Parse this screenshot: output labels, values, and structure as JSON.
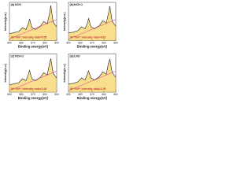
{
  "chart_data": [
    {
      "type": "line",
      "panel": "(a)",
      "title": "NCH",
      "x_label": "Binding energy(eV)",
      "y_label": "Intensity(a.u.)",
      "note": "Ni³⁺/Ni²⁺ intensity ratio=0.55",
      "color": "#222222",
      "fill": "#f2c230",
      "x": [
        890,
        886,
        882,
        879,
        876,
        874,
        873,
        871,
        868,
        864,
        861,
        858,
        856,
        855,
        853,
        850
      ],
      "values": [
        18,
        21,
        24,
        34,
        29,
        44,
        56,
        34,
        29,
        37,
        50,
        44,
        72,
        92,
        48,
        36
      ],
      "xlim": [
        890,
        850
      ],
      "xticks": [
        890,
        880,
        870,
        860,
        850
      ],
      "ylim": [
        0,
        100
      ]
    },
    {
      "type": "line",
      "panel": "(b)",
      "title": "NCH-1",
      "x_label": "Binding energy(eV)",
      "y_label": "Intensity(a.u.)",
      "note": "Ni³⁺/Ni²⁺ intensity ratio=0.82",
      "color": "#222222",
      "fill": "#f2c230",
      "x": [
        890,
        886,
        882,
        879,
        876,
        874,
        873,
        871,
        868,
        864,
        861,
        858,
        856,
        855,
        853,
        850
      ],
      "values": [
        20,
        22,
        26,
        36,
        31,
        46,
        58,
        36,
        31,
        39,
        52,
        46,
        74,
        90,
        50,
        38
      ],
      "xlim": [
        890,
        850
      ],
      "xticks": [
        890,
        880,
        870,
        860,
        850
      ],
      "ylim": [
        0,
        100
      ]
    },
    {
      "type": "line",
      "panel": "(c)",
      "title": "NCH-2",
      "x_label": "Binding energy(eV)",
      "y_label": "Intensity(a.u.)",
      "note": "Ni³⁺/Ni²⁺ intensity ratio=1.06",
      "color": "#222222",
      "fill": "#f2c230",
      "x": [
        890,
        886,
        882,
        879,
        876,
        874,
        873,
        871,
        868,
        864,
        861,
        858,
        856,
        855,
        853,
        850
      ],
      "values": [
        19,
        22,
        25,
        35,
        30,
        47,
        57,
        35,
        30,
        38,
        51,
        45,
        76,
        88,
        49,
        37
      ],
      "xlim": [
        890,
        850
      ],
      "xticks": [
        890,
        880,
        870,
        860,
        850
      ],
      "ylim": [
        0,
        100
      ]
    },
    {
      "type": "line",
      "panel": "(d)",
      "title": "LNO",
      "x_label": "Binding energy(eV)",
      "y_label": "Intensity(a.u.)",
      "note": "Ni³⁺/Ni²⁺ intensity ratio=1.29",
      "color": "#222222",
      "fill": "#f2c230",
      "x": [
        890,
        886,
        882,
        879,
        876,
        874,
        873,
        871,
        868,
        864,
        861,
        858,
        856,
        855,
        853,
        850
      ],
      "values": [
        21,
        23,
        27,
        37,
        32,
        48,
        56,
        37,
        32,
        40,
        53,
        47,
        78,
        86,
        51,
        39
      ],
      "xlim": [
        890,
        850
      ],
      "xticks": [
        890,
        880,
        870,
        860,
        850
      ],
      "ylim": [
        0,
        100
      ]
    }
  ]
}
